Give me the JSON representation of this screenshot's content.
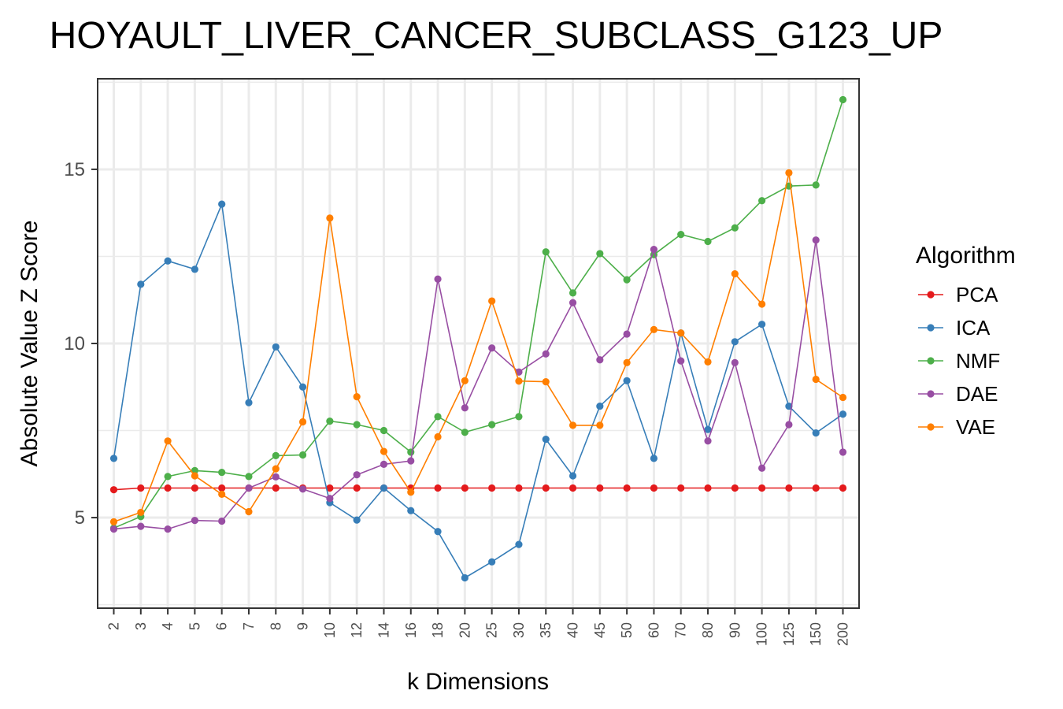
{
  "chart_data": {
    "type": "line",
    "title": "HOYAULT_LIVER_CANCER_SUBCLASS_G123_UP",
    "xlabel": "k Dimensions",
    "ylabel": "Absolute Value Z Score",
    "categories": [
      "2",
      "3",
      "4",
      "5",
      "6",
      "7",
      "8",
      "9",
      "10",
      "12",
      "14",
      "16",
      "18",
      "20",
      "25",
      "30",
      "35",
      "40",
      "45",
      "50",
      "60",
      "70",
      "80",
      "90",
      "100",
      "125",
      "150",
      "200"
    ],
    "yticks": [
      5,
      10,
      15
    ],
    "ylim": [
      2.4,
      17.6
    ],
    "grid": true,
    "legend_title": "Algorithm",
    "legend_position": "right",
    "series": [
      {
        "name": "PCA",
        "color": "#e41a1c",
        "values": [
          5.8,
          5.85,
          5.85,
          5.85,
          5.85,
          5.85,
          5.85,
          5.85,
          5.85,
          5.85,
          5.85,
          5.85,
          5.85,
          5.85,
          5.85,
          5.85,
          5.85,
          5.85,
          5.85,
          5.85,
          5.85,
          5.85,
          5.85,
          5.85,
          5.85,
          5.85,
          5.85,
          5.85
        ]
      },
      {
        "name": "ICA",
        "color": "#377eb8",
        "values": [
          6.7,
          11.7,
          12.37,
          12.13,
          14.0,
          8.3,
          9.9,
          8.75,
          5.43,
          4.93,
          5.85,
          5.2,
          4.6,
          3.27,
          3.73,
          4.23,
          7.25,
          6.2,
          8.2,
          8.93,
          6.7,
          10.3,
          7.53,
          10.05,
          10.55,
          8.2,
          7.43,
          7.97
        ]
      },
      {
        "name": "NMF",
        "color": "#4daf4a",
        "values": [
          4.7,
          5.03,
          6.18,
          6.35,
          6.3,
          6.18,
          6.78,
          6.8,
          7.77,
          7.67,
          7.5,
          6.88,
          7.9,
          7.45,
          7.67,
          7.9,
          12.63,
          11.45,
          12.58,
          11.83,
          12.55,
          13.13,
          12.93,
          13.32,
          14.1,
          14.52,
          14.55,
          17.0
        ]
      },
      {
        "name": "DAE",
        "color": "#984ea3",
        "values": [
          4.67,
          4.75,
          4.67,
          4.92,
          4.9,
          5.85,
          6.17,
          5.82,
          5.55,
          6.23,
          6.53,
          6.63,
          11.85,
          8.15,
          9.87,
          9.18,
          9.7,
          11.17,
          9.53,
          10.27,
          12.7,
          9.5,
          7.2,
          9.45,
          6.42,
          7.67,
          12.97,
          6.88
        ]
      },
      {
        "name": "VAE",
        "color": "#ff7f00",
        "values": [
          4.88,
          5.15,
          7.2,
          6.2,
          5.67,
          5.17,
          6.4,
          7.75,
          13.6,
          8.47,
          6.9,
          5.73,
          7.32,
          8.93,
          11.22,
          8.92,
          8.9,
          7.65,
          7.65,
          9.45,
          10.4,
          10.3,
          9.47,
          12.0,
          11.13,
          14.9,
          8.97,
          8.45
        ]
      }
    ]
  }
}
